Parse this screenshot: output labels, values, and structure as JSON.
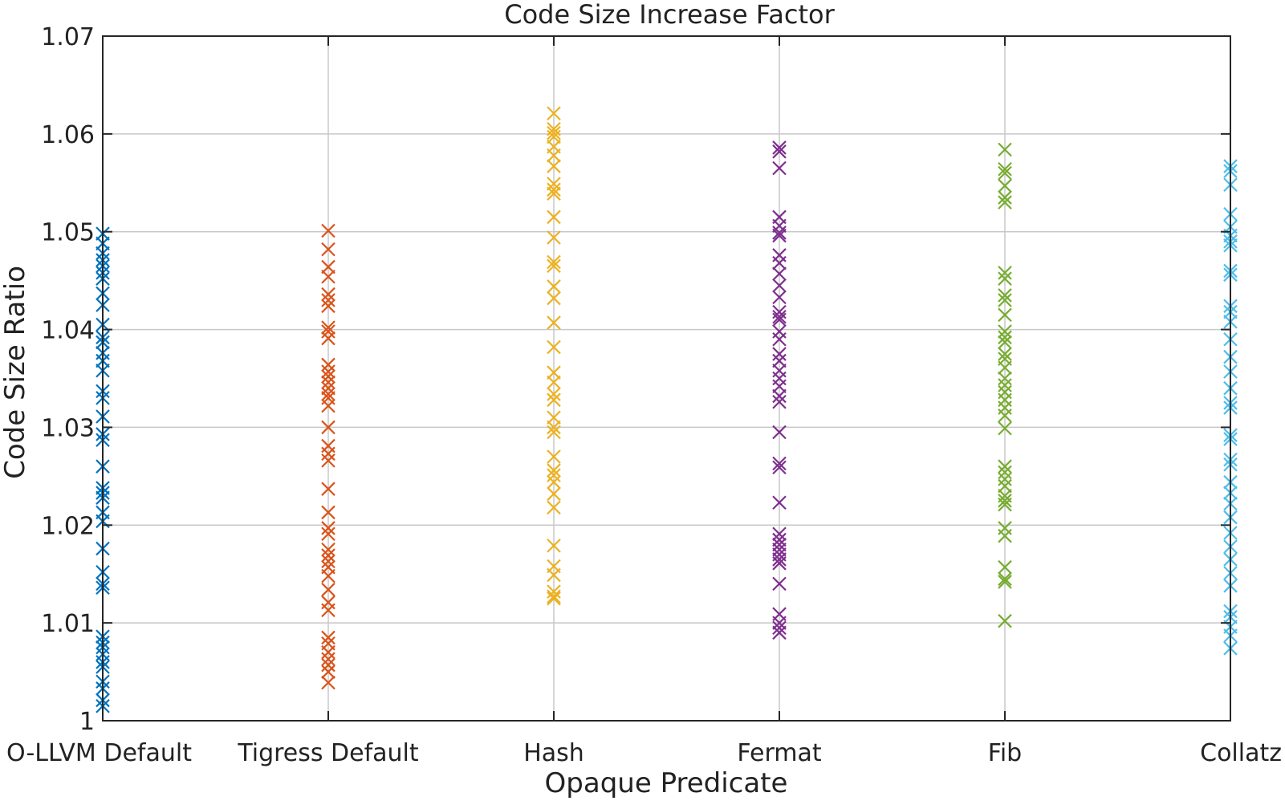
{
  "chart_data": {
    "type": "scatter",
    "marker": "x",
    "title": "Code Size Increase Factor",
    "xlabel": "Opaque Predicate",
    "ylabel": "Code Size Ratio",
    "categories": [
      "O-LLVM Default",
      "Tigress Default",
      "Hash",
      "Fermat",
      "Fib",
      "Collatz"
    ],
    "ylim": [
      1,
      1.07
    ],
    "yticks": [
      1,
      1.01,
      1.02,
      1.03,
      1.04,
      1.05,
      1.06,
      1.07
    ],
    "ytick_labels": [
      "1",
      "1.01",
      "1.02",
      "1.03",
      "1.04",
      "1.05",
      "1.06",
      "1.07"
    ],
    "grid": true,
    "series": [
      {
        "category": "O-LLVM Default",
        "color": "#0072BD",
        "values": [
          1.0498,
          1.0488,
          1.0478,
          1.0471,
          1.0465,
          1.0458,
          1.0452,
          1.0437,
          1.0425,
          1.0405,
          1.0392,
          1.0387,
          1.0376,
          1.0368,
          1.0358,
          1.0337,
          1.033,
          1.0311,
          1.0293,
          1.0287,
          1.026,
          1.0238,
          1.0233,
          1.0228,
          1.0213,
          1.0204,
          1.0176,
          1.0152,
          1.014,
          1.0136,
          1.0086,
          1.008,
          1.0075,
          1.0068,
          1.006,
          1.0055,
          1.004,
          1.0033,
          1.0021,
          1.0015
        ]
      },
      {
        "category": "Tigress Default",
        "color": "#D95319",
        "values": [
          1.0501,
          1.0482,
          1.0464,
          1.0454,
          1.0436,
          1.043,
          1.0424,
          1.0402,
          1.0398,
          1.0391,
          1.0364,
          1.0357,
          1.0352,
          1.0346,
          1.034,
          1.0334,
          1.033,
          1.0322,
          1.03,
          1.0281,
          1.0273,
          1.0266,
          1.0237,
          1.0213,
          1.0197,
          1.0191,
          1.0175,
          1.0169,
          1.0163,
          1.0157,
          1.0148,
          1.0134,
          1.0121,
          1.0113,
          1.0085,
          1.0079,
          1.007,
          1.0063,
          1.0057,
          1.005,
          1.0039
        ]
      },
      {
        "category": "Hash",
        "color": "#EDB120",
        "values": [
          1.0621,
          1.0605,
          1.0601,
          1.0597,
          1.0587,
          1.0578,
          1.0567,
          1.0549,
          1.0543,
          1.0539,
          1.0515,
          1.0494,
          1.0469,
          1.0465,
          1.0444,
          1.0432,
          1.0407,
          1.0382,
          1.0356,
          1.0346,
          1.0334,
          1.0328,
          1.031,
          1.03,
          1.0295,
          1.027,
          1.0256,
          1.0251,
          1.0244,
          1.0232,
          1.0218,
          1.0179,
          1.0158,
          1.0149,
          1.0132,
          1.0127,
          1.0125
        ]
      },
      {
        "category": "Fermat",
        "color": "#7E2F8E",
        "values": [
          1.0586,
          1.0582,
          1.0565,
          1.0515,
          1.0506,
          1.0499,
          1.0496,
          1.0476,
          1.0468,
          1.0457,
          1.0445,
          1.0433,
          1.0418,
          1.0413,
          1.041,
          1.0398,
          1.039,
          1.0375,
          1.0368,
          1.0358,
          1.035,
          1.0342,
          1.0332,
          1.0326,
          1.0295,
          1.0263,
          1.0259,
          1.0223,
          1.0191,
          1.0185,
          1.018,
          1.0175,
          1.017,
          1.0165,
          1.0161,
          1.014,
          1.0109,
          1.01,
          1.0095,
          1.009
        ]
      },
      {
        "category": "Fib",
        "color": "#77AC30",
        "values": [
          1.0584,
          1.0564,
          1.056,
          1.0547,
          1.0535,
          1.053,
          1.0458,
          1.0452,
          1.0435,
          1.043,
          1.0415,
          1.0398,
          1.0392,
          1.0387,
          1.0375,
          1.037,
          1.0361,
          1.035,
          1.0343,
          1.0336,
          1.0328,
          1.032,
          1.0312,
          1.0299,
          1.026,
          1.0254,
          1.0247,
          1.024,
          1.023,
          1.0225,
          1.0221,
          1.0197,
          1.0189,
          1.0157,
          1.0145,
          1.0142,
          1.0102
        ]
      },
      {
        "category": "Collatz",
        "color": "#4DBEEE",
        "values": [
          1.0567,
          1.0562,
          1.0548,
          1.0518,
          1.0505,
          1.0496,
          1.049,
          1.0486,
          1.046,
          1.0456,
          1.0424,
          1.0418,
          1.0408,
          1.039,
          1.0372,
          1.0357,
          1.034,
          1.0325,
          1.032,
          1.0292,
          1.0288,
          1.0267,
          1.0262,
          1.0244,
          1.0233,
          1.0222,
          1.0208,
          1.0192,
          1.0178,
          1.0165,
          1.0151,
          1.0138,
          1.0112,
          1.0106,
          1.0096,
          1.0087,
          1.0074
        ]
      }
    ]
  }
}
